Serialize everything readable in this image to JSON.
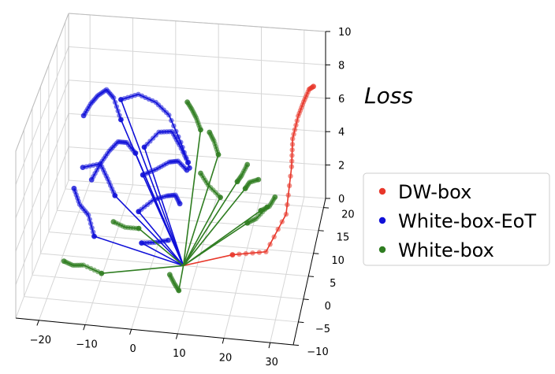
{
  "chart_data": {
    "type": "scatter",
    "projection": "3d",
    "zlabel": "Loss",
    "xlim": [
      -25,
      35
    ],
    "ylim": [
      -10,
      22
    ],
    "zlim": [
      0,
      10
    ],
    "xticks": [
      "−20",
      "−10",
      "0",
      "10",
      "20",
      "30"
    ],
    "yticks": [
      "−10",
      "−5",
      "0",
      "5",
      "10",
      "15",
      "20"
    ],
    "zticks": [
      "0",
      "2",
      "4",
      "6",
      "8",
      "10"
    ],
    "grid": true,
    "legend_position": "right",
    "origin": [
      7,
      5,
      0
    ],
    "series": [
      {
        "name": "DW-box",
        "color": "#e8372a",
        "paths": [
          [
            [
              7,
              5,
              0
            ],
            [
              18,
              5,
              0.9
            ],
            [
              26,
              3,
              1.8
            ],
            [
              30,
              5,
              3.6
            ],
            [
              31,
              6,
              6.2
            ],
            [
              31,
              7,
              7.6
            ],
            [
              32,
              8,
              8.7
            ],
            [
              33,
              9,
              9.3
            ],
            [
              34,
              10,
              9.8
            ],
            [
              35,
              10,
              10
            ]
          ]
        ]
      },
      {
        "name": "White-box-EoT",
        "color": "#1010d8",
        "paths": [
          [
            [
              7,
              5,
              0
            ],
            [
              -10,
              14,
              6
            ],
            [
              -12,
              15,
              7
            ],
            [
              -14,
              16,
              7.2
            ],
            [
              -16,
              16,
              6.8
            ],
            [
              -18,
              17,
              6
            ],
            [
              -20,
              18,
              5
            ]
          ],
          [
            [
              7,
              5,
              0
            ],
            [
              -10,
              14,
              7.2
            ],
            [
              -6,
              14,
              7.6
            ],
            [
              -2,
              14,
              7.2
            ],
            [
              1,
              14,
              6.5
            ],
            [
              4,
              13,
              5.2
            ],
            [
              6,
              13,
              3.7
            ]
          ],
          [
            [
              7,
              5,
              0
            ],
            [
              -6,
              12,
              4.6
            ],
            [
              -8,
              12,
              5.2
            ],
            [
              -10,
              12,
              5.2
            ],
            [
              -12,
              12,
              4.6
            ],
            [
              -14,
              12,
              3.8
            ],
            [
              -16,
              12,
              2.8
            ]
          ],
          [
            [
              7,
              5,
              0
            ],
            [
              -4,
              12,
              5
            ],
            [
              -1,
              13,
              5.7
            ],
            [
              2,
              13,
              5.8
            ],
            [
              4,
              12,
              5.3
            ],
            [
              6,
              12,
              4.3
            ]
          ],
          [
            [
              7,
              5,
              0
            ],
            [
              -10,
              10,
              2.5
            ],
            [
              -12,
              11,
              3.2
            ],
            [
              -14,
              12,
              3.8
            ],
            [
              -18,
              12,
              3.5
            ]
          ],
          [
            [
              7,
              5,
              0
            ],
            [
              -4,
              11,
              3.6
            ],
            [
              -1,
              11,
              4
            ],
            [
              2,
              11,
              4.5
            ],
            [
              4,
              11,
              4.6
            ],
            [
              6,
              11,
              4.1
            ]
          ],
          [
            [
              7,
              5,
              0
            ],
            [
              -14,
              8,
              0.5
            ],
            [
              -16,
              10,
              1.2
            ],
            [
              -18,
              10,
              1.8
            ],
            [
              -20,
              12,
              2.2
            ]
          ],
          [
            [
              7,
              5,
              0
            ],
            [
              -4,
              8,
              2.2
            ],
            [
              -1,
              9,
              2.7
            ],
            [
              2,
              9,
              3
            ],
            [
              4,
              9,
              3.1
            ],
            [
              5,
              9,
              2.6
            ]
          ],
          [
            [
              7,
              5,
              0
            ],
            [
              -3,
              7,
              0.6
            ],
            [
              0,
              7,
              0.7
            ],
            [
              3,
              7,
              0.9
            ]
          ]
        ]
      },
      {
        "name": "White-box",
        "color": "#2f7d21",
        "paths": [
          [
            [
              7,
              5,
              0
            ],
            [
              10,
              8,
              7.4
            ],
            [
              9,
              8,
              8.1
            ],
            [
              8,
              8,
              8.6
            ],
            [
              7,
              8,
              9
            ]
          ],
          [
            [
              7,
              5,
              0
            ],
            [
              14,
              8,
              6
            ],
            [
              13,
              8,
              6.8
            ],
            [
              12,
              8,
              7.3
            ]
          ],
          [
            [
              7,
              5,
              0
            ],
            [
              15,
              6,
              4
            ],
            [
              12,
              7,
              4.4
            ],
            [
              10,
              8,
              4.8
            ]
          ],
          [
            [
              7,
              5,
              0
            ],
            [
              18,
              9,
              4.2
            ],
            [
              19,
              9,
              4.6
            ],
            [
              20,
              10,
              5
            ]
          ],
          [
            [
              7,
              5,
              0
            ],
            [
              19,
              12,
              3
            ],
            [
              20,
              12,
              3.4
            ],
            [
              22,
              12,
              3.6
            ]
          ],
          [
            [
              7,
              5,
              0
            ],
            [
              20,
              10,
              1.5
            ],
            [
              22,
              10,
              1.8
            ],
            [
              24,
              12,
              2
            ]
          ],
          [
            [
              7,
              5,
              0
            ],
            [
              22,
              14,
              1.2
            ],
            [
              24,
              14,
              1.5
            ],
            [
              25,
              15,
              1.8
            ]
          ],
          [
            [
              7,
              5,
              0
            ],
            [
              -3,
              5,
              2
            ],
            [
              -6,
              5,
              2
            ],
            [
              -9,
              6,
              2
            ]
          ],
          [
            [
              7,
              5,
              0
            ],
            [
              -10,
              1,
              0.2
            ],
            [
              -14,
              1,
              0.6
            ],
            [
              -16,
              0,
              0.8
            ],
            [
              -18,
              0,
              1
            ]
          ],
          [
            [
              7,
              5,
              0
            ],
            [
              8,
              -2,
              0.4
            ],
            [
              7,
              -2,
              0.8
            ],
            [
              6,
              -2,
              1.3
            ]
          ]
        ]
      }
    ]
  }
}
